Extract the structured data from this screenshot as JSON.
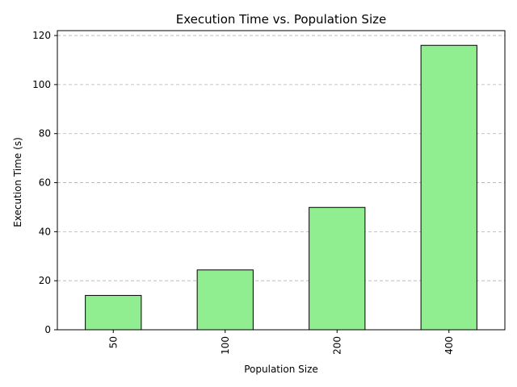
{
  "chart_data": {
    "type": "bar",
    "title": "Execution Time vs. Population Size",
    "xlabel": "Population Size",
    "ylabel": "Execution Time (s)",
    "categories": [
      "50",
      "100",
      "200",
      "400"
    ],
    "values": [
      14.0,
      24.4,
      49.9,
      116.0
    ],
    "ylim": [
      0,
      122
    ],
    "yticks": [
      0,
      20,
      40,
      60,
      80,
      100,
      120
    ],
    "ytick_labels": [
      "0",
      "20",
      "40",
      "60",
      "80",
      "100",
      "120"
    ],
    "grid": "y-dashed",
    "bar_color": "#90ee90",
    "edge_color": "#000000",
    "x_tick_rotation": "vertical"
  }
}
